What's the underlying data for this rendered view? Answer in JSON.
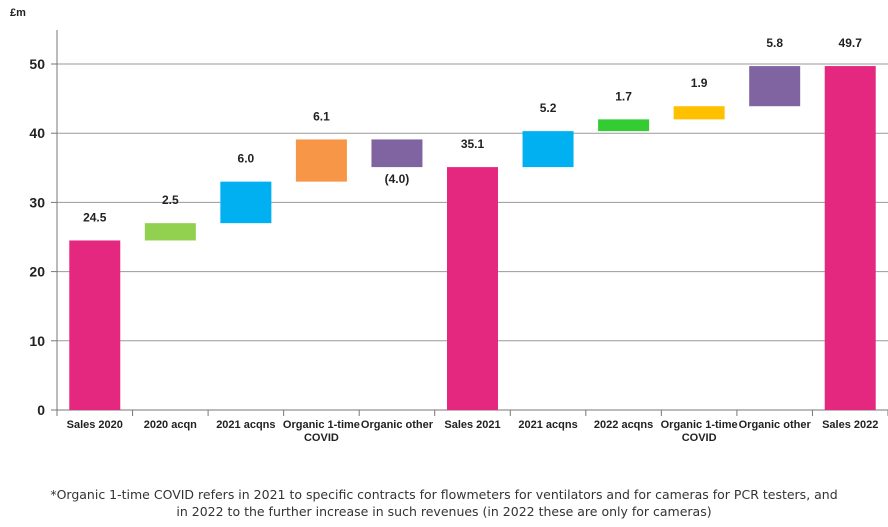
{
  "chart_data": {
    "type": "bar",
    "subtype": "waterfall",
    "ylabel": "£m",
    "ylim": [
      0,
      55
    ],
    "yticks": [
      0,
      10,
      20,
      30,
      40,
      50
    ],
    "grid": true,
    "bars": [
      {
        "category": [
          "Sales 2020"
        ],
        "kind": "total",
        "start": 0,
        "end": 24.5,
        "label": "24.5",
        "color": "#e5287f"
      },
      {
        "category": [
          "2020 acqn"
        ],
        "kind": "delta",
        "start": 24.5,
        "end": 27.0,
        "label": "2.5",
        "color": "#92d050"
      },
      {
        "category": [
          "2021 acqns"
        ],
        "kind": "delta",
        "start": 27.0,
        "end": 33.0,
        "label": "6.0",
        "color": "#00b0f0"
      },
      {
        "category": [
          "Organic 1-time",
          "COVID"
        ],
        "kind": "delta",
        "start": 33.0,
        "end": 39.1,
        "label": "6.1",
        "color": "#f79646"
      },
      {
        "category": [
          "Organic other"
        ],
        "kind": "delta",
        "start": 39.1,
        "end": 35.1,
        "label": "(4.0)",
        "color": "#8064a2"
      },
      {
        "category": [
          "Sales 2021"
        ],
        "kind": "total",
        "start": 0,
        "end": 35.1,
        "label": "35.1",
        "color": "#e5287f"
      },
      {
        "category": [
          "2021 acqns"
        ],
        "kind": "delta",
        "start": 35.1,
        "end": 40.3,
        "label": "5.2",
        "color": "#00b0f0"
      },
      {
        "category": [
          "2022 acqns"
        ],
        "kind": "delta",
        "start": 40.3,
        "end": 42.0,
        "label": "1.7",
        "color": "#33cc33"
      },
      {
        "category": [
          "Organic 1-time",
          "COVID"
        ],
        "kind": "delta",
        "start": 42.0,
        "end": 43.9,
        "label": "1.9",
        "color": "#ffc000"
      },
      {
        "category": [
          "Organic other"
        ],
        "kind": "delta",
        "start": 43.9,
        "end": 49.7,
        "label": "5.8",
        "color": "#8064a2"
      },
      {
        "category": [
          "Sales 2022"
        ],
        "kind": "total",
        "start": 0,
        "end": 49.7,
        "label": "49.7",
        "color": "#e5287f"
      }
    ]
  },
  "footnote": {
    "line1": "*Organic 1-time COVID refers in 2021 to specific contracts for flowmeters for ventilators and for cameras for PCR testers, and",
    "line2": "in 2022 to the further increase in such revenues (in 2022 these are only for cameras)"
  }
}
